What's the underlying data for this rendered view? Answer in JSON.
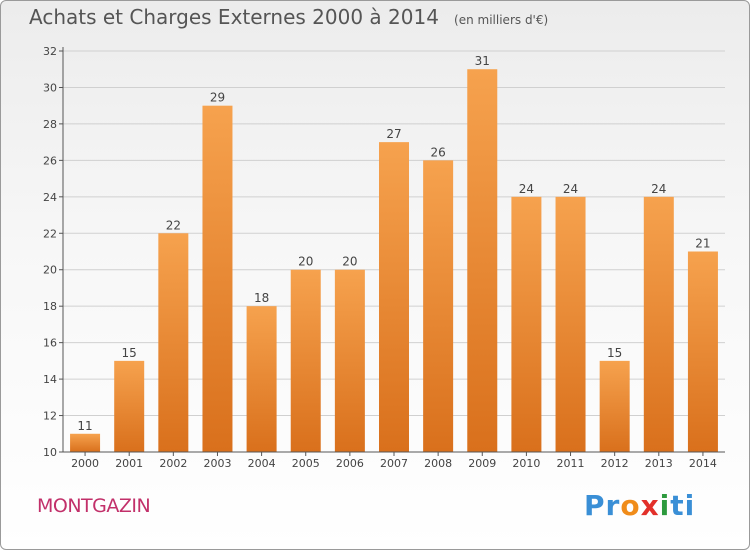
{
  "title": {
    "main": "Achats et Charges Externes 2000 à 2014",
    "unit": "(en milliers d'€)"
  },
  "commune": "MONTGAZIN",
  "logo": {
    "letters": [
      "P",
      "r",
      "o",
      "x",
      "i",
      "t",
      "i"
    ],
    "colors": [
      "#3a8fd6",
      "#3a8fd6",
      "#f08c1a",
      "#e2302a",
      "#2d9a3e",
      "#3a8fd6",
      "#3a8fd6"
    ]
  },
  "colors": {
    "bar_top": "#f6a24e",
    "bar_bottom": "#d9701c",
    "grid": "#d0d0d0",
    "axis": "#555555"
  },
  "chart_data": {
    "type": "bar",
    "title": "Achats et Charges Externes 2000 à 2014",
    "subtitle": "(en milliers d'€)",
    "xlabel": "",
    "ylabel": "",
    "categories": [
      "2000",
      "2001",
      "2002",
      "2003",
      "2004",
      "2005",
      "2006",
      "2007",
      "2008",
      "2009",
      "2010",
      "2011",
      "2012",
      "2013",
      "2014"
    ],
    "values": [
      11,
      15,
      22,
      29,
      18,
      20,
      20,
      27,
      26,
      31,
      24,
      24,
      15,
      24,
      21
    ],
    "ylim": [
      10,
      32
    ],
    "yticks": [
      "10",
      "12",
      "14",
      "16",
      "18",
      "20",
      "22",
      "24",
      "26",
      "28",
      "30",
      "32"
    ],
    "grid": true
  }
}
